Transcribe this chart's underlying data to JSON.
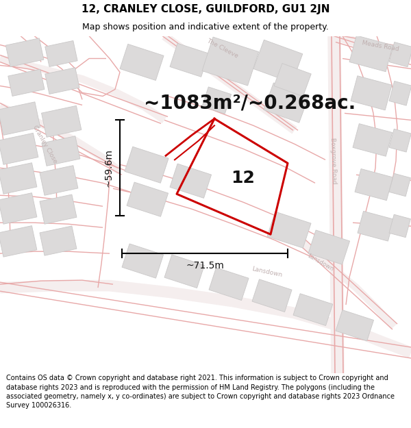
{
  "title_line1": "12, CRANLEY CLOSE, GUILDFORD, GU1 2JN",
  "title_line2": "Map shows position and indicative extent of the property.",
  "area_text": "~1083m²/~0.268ac.",
  "property_number": "12",
  "dim_height": "~59.6m",
  "dim_width": "~71.5m",
  "footer_text": "Contains OS data © Crown copyright and database right 2021. This information is subject to Crown copyright and database rights 2023 and is reproduced with the permission of HM Land Registry. The polygons (including the associated geometry, namely x, y co-ordinates) are subject to Crown copyright and database rights 2023 Ordnance Survey 100026316.",
  "map_bg": "#faf8f8",
  "road_color": "#e8a8a8",
  "road_fill": "#f5eeee",
  "building_color": "#dcdada",
  "building_edge": "#cac8c8",
  "property_outline_color": "#cc0000",
  "label_color": "#c0b0b0",
  "title_fontsize": 11,
  "subtitle_fontsize": 9,
  "area_fontsize": 20,
  "number_fontsize": 18,
  "dim_fontsize": 10,
  "footer_fontsize": 7
}
